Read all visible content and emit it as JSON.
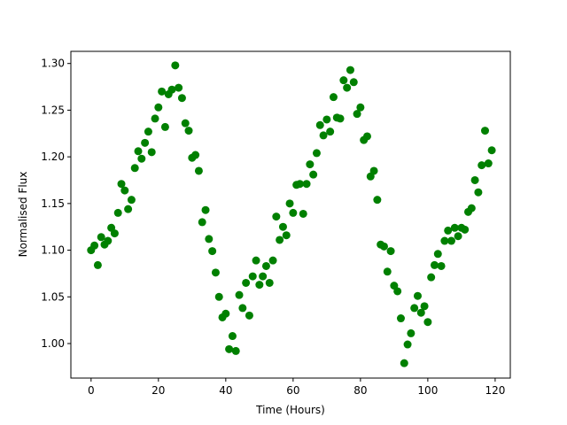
{
  "chart_data": {
    "type": "scatter",
    "xlabel": "Time (Hours)",
    "ylabel": "Normalised Flux",
    "xlim": [
      -6,
      124.5
    ],
    "ylim": [
      0.963,
      1.313
    ],
    "xticks": [
      0,
      20,
      40,
      60,
      80,
      100,
      120
    ],
    "yticks": [
      {
        "value": 1.0,
        "label": "1.00"
      },
      {
        "value": 1.05,
        "label": "1.05"
      },
      {
        "value": 1.1,
        "label": "1.10"
      },
      {
        "value": 1.15,
        "label": "1.15"
      },
      {
        "value": 1.2,
        "label": "1.20"
      },
      {
        "value": 1.25,
        "label": "1.25"
      },
      {
        "value": 1.3,
        "label": "1.30"
      }
    ],
    "grid": false,
    "series": [
      {
        "color": "#008000",
        "x": [
          0,
          1,
          2,
          3,
          4,
          5,
          6,
          7,
          8,
          9,
          10,
          11,
          12,
          13,
          14,
          15,
          16,
          17,
          18,
          19,
          20,
          21,
          22,
          23,
          24,
          25,
          26,
          27,
          28,
          29,
          30,
          31,
          32,
          33,
          34,
          35,
          36,
          37,
          38,
          39,
          40,
          41,
          42,
          43,
          44,
          45,
          46,
          47,
          48,
          49,
          50,
          51,
          52,
          53,
          54,
          55,
          56,
          57,
          58,
          59,
          60,
          61,
          62,
          63,
          64,
          65,
          66,
          67,
          68,
          69,
          70,
          71,
          72,
          73,
          74,
          75,
          76,
          77,
          78,
          79,
          80,
          81,
          82,
          83,
          84,
          85,
          86,
          87,
          88,
          89,
          90,
          91,
          92,
          93,
          94,
          95,
          96,
          97,
          98,
          99,
          100,
          101,
          102,
          103,
          104,
          105,
          106,
          107,
          108,
          109,
          110,
          111,
          112,
          113,
          114,
          115,
          116,
          117,
          118,
          119
        ],
        "values": [
          1.1,
          1.105,
          1.084,
          1.114,
          1.106,
          1.11,
          1.124,
          1.118,
          1.14,
          1.171,
          1.164,
          1.144,
          1.154,
          1.188,
          1.206,
          1.198,
          1.215,
          1.227,
          1.205,
          1.241,
          1.253,
          1.27,
          1.232,
          1.267,
          1.272,
          1.298,
          1.274,
          1.263,
          1.236,
          1.228,
          1.199,
          1.202,
          1.185,
          1.13,
          1.143,
          1.112,
          1.099,
          1.076,
          1.05,
          1.028,
          1.032,
          0.994,
          1.008,
          0.992,
          1.052,
          1.038,
          1.065,
          1.03,
          1.072,
          1.089,
          1.063,
          1.072,
          1.083,
          1.065,
          1.089,
          1.136,
          1.111,
          1.125,
          1.116,
          1.15,
          1.14,
          1.17,
          1.171,
          1.139,
          1.171,
          1.192,
          1.181,
          1.204,
          1.234,
          1.223,
          1.24,
          1.227,
          1.264,
          1.242,
          1.241,
          1.282,
          1.274,
          1.293,
          1.28,
          1.246,
          1.253,
          1.218,
          1.222,
          1.179,
          1.185,
          1.154,
          1.106,
          1.104,
          1.077,
          1.099,
          1.062,
          1.056,
          1.027,
          0.979,
          0.999,
          1.011,
          1.038,
          1.051,
          1.033,
          1.04,
          1.023,
          1.071,
          1.084,
          1.096,
          1.083,
          1.11,
          1.121,
          1.11,
          1.124,
          1.115,
          1.124,
          1.122,
          1.141,
          1.145,
          1.175,
          1.162,
          1.191,
          1.228,
          1.193,
          1.207
        ]
      }
    ]
  }
}
